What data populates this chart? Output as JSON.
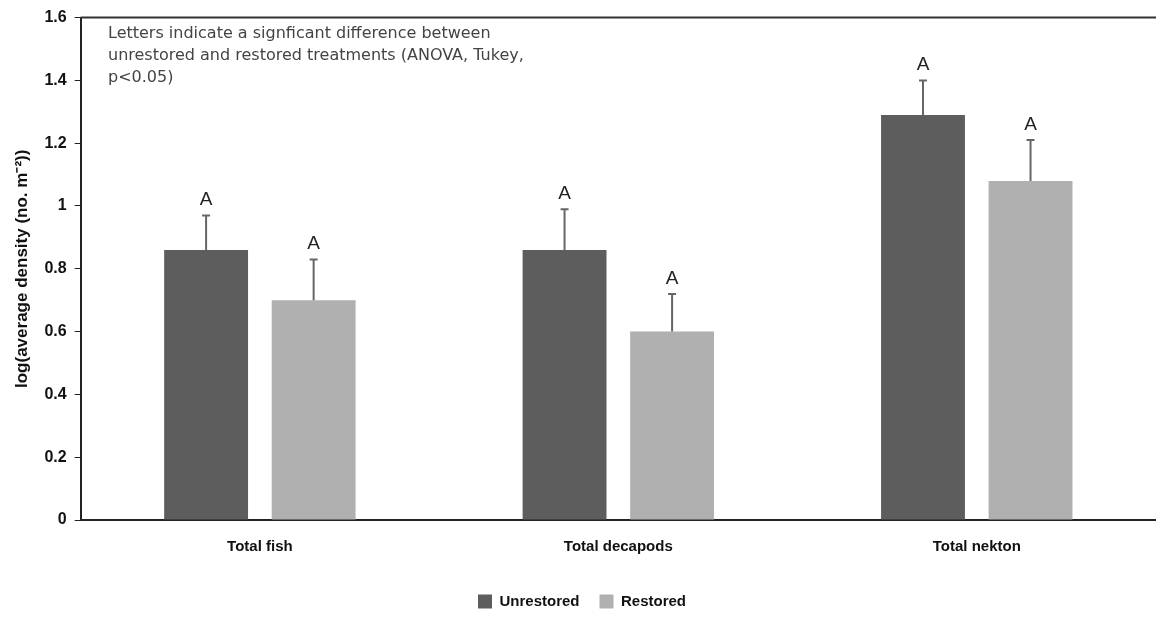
{
  "chart_data": {
    "type": "bar",
    "categories": [
      "Total fish",
      "Total decapods",
      "Total nekton"
    ],
    "series": [
      {
        "name": "Unrestored",
        "color": "#5d5d5d",
        "values": [
          0.86,
          0.86,
          1.29
        ],
        "errors": [
          [
            0.86,
            0.97
          ],
          [
            0.86,
            0.99
          ],
          [
            1.29,
            1.4
          ]
        ],
        "value_labels": [
          "A",
          "A",
          "A"
        ]
      },
      {
        "name": "Restored",
        "color": "#b0b0b0",
        "values": [
          0.7,
          0.6,
          1.08
        ],
        "errors": [
          [
            0.7,
            0.83
          ],
          [
            0.6,
            0.72
          ],
          [
            1.08,
            1.21
          ]
        ],
        "value_labels": [
          "A",
          "A",
          "A"
        ]
      }
    ],
    "ylabel": "log(average density (no. m⁻²))",
    "ylim": [
      0,
      1.6
    ],
    "yticks": [
      0,
      0.2,
      0.4,
      0.6,
      0.8,
      1,
      1.2,
      1.4,
      1.6
    ],
    "annotations": [
      "Letters indicate a signficant difference between unrestored and restored treatments (ANOVA, Tukey, p<0.05)"
    ],
    "grid": false,
    "legend": "bottom"
  }
}
